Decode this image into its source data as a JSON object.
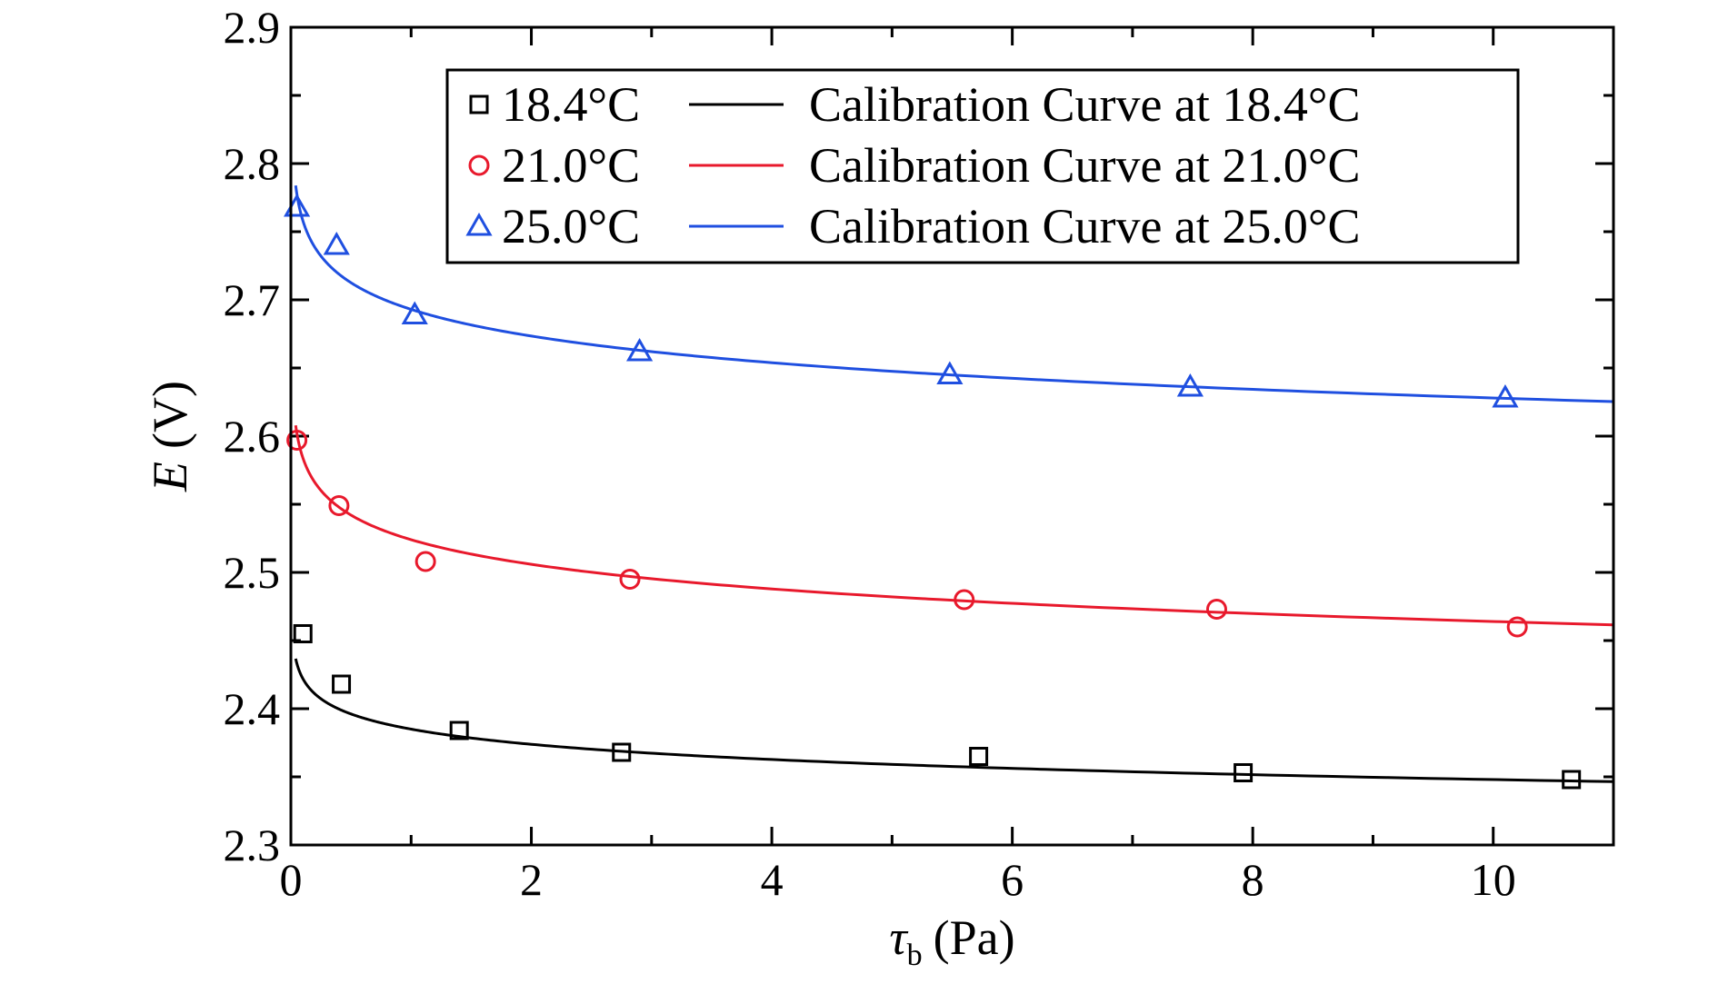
{
  "chart_data": {
    "type": "scatter",
    "xlabel": {
      "symbol": "τ",
      "subscript": "b",
      "unit": "(Pa)"
    },
    "ylabel": {
      "symbol": "E",
      "unit": "(V)"
    },
    "xlim": [
      0,
      11
    ],
    "ylim": [
      2.3,
      2.9
    ],
    "xticks": [
      0,
      2,
      4,
      6,
      8,
      10
    ],
    "yticks": [
      2.3,
      2.4,
      2.5,
      2.6,
      2.7,
      2.8,
      2.9
    ],
    "xtick_labels": [
      "0",
      "2",
      "4",
      "6",
      "8",
      "10"
    ],
    "ytick_labels": [
      "2.3",
      "2.4",
      "2.5",
      "2.6",
      "2.7",
      "2.8",
      "2.9"
    ],
    "legend_position": "top-right",
    "series": [
      {
        "name": "18.4°C",
        "curve_name": "Calibration Curve at 18.4°C",
        "marker": "square",
        "color": "#000000",
        "x": [
          0.1,
          0.42,
          1.4,
          2.75,
          5.72,
          7.92,
          10.65
        ],
        "y": [
          2.455,
          2.418,
          2.384,
          2.368,
          2.365,
          2.353,
          2.348
        ],
        "curve": {
          "a": 2.385,
          "b": 0.037,
          "xmin": 0.04,
          "xmax": 11
        }
      },
      {
        "name": "21.0°C",
        "curve_name": "Calibration Curve at 21.0°C",
        "marker": "circle",
        "color": "#e8192c",
        "x": [
          0.05,
          0.4,
          1.12,
          2.82,
          5.6,
          7.7,
          10.2
        ],
        "y": [
          2.597,
          2.549,
          2.508,
          2.495,
          2.48,
          2.473,
          2.46
        ],
        "curve": {
          "a": 2.524,
          "b": 0.06,
          "xmin": 0.04,
          "xmax": 11
        }
      },
      {
        "name": "25.0°C",
        "curve_name": "Calibration Curve at 25.0°C",
        "marker": "triangle",
        "color": "#1f4fe0",
        "x": [
          0.05,
          0.38,
          1.03,
          2.9,
          5.48,
          7.48,
          10.1
        ],
        "y": [
          2.768,
          2.74,
          2.689,
          2.662,
          2.645,
          2.636,
          2.628
        ],
        "curve": {
          "a": 2.693,
          "b": 0.065,
          "xmin": 0.04,
          "xmax": 11
        }
      }
    ]
  }
}
